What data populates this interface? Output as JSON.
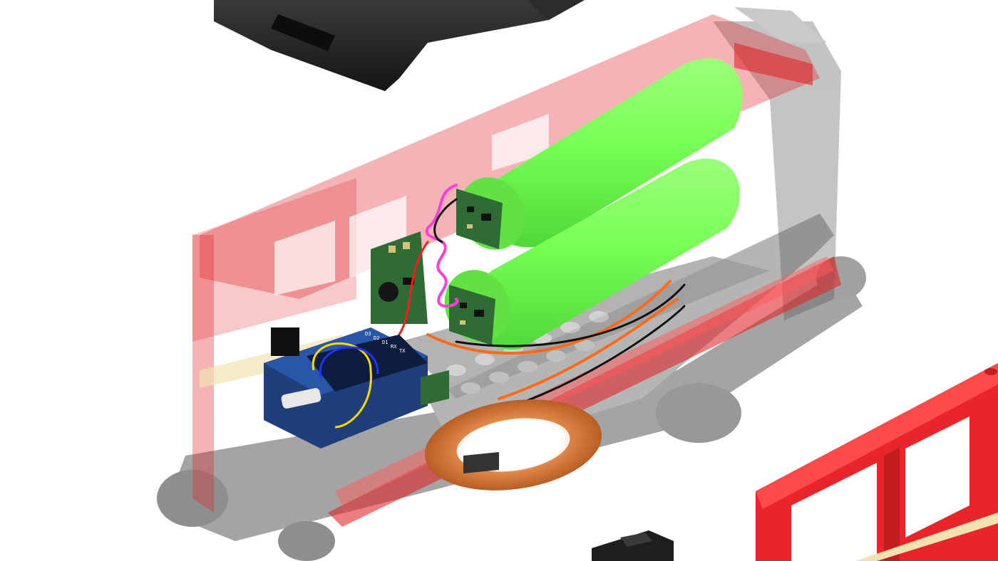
{
  "scene": {
    "subject": "exploded-render-of-brick-train-wagon-with-electronics",
    "background_color": "#ffffff",
    "colors": {
      "translucent_red": "#e0282a",
      "translucent_grey": "#6e6e6e",
      "battery_green": "#7dff5c",
      "pcb_green": "#2f6b35",
      "module_blue": "#1e3f7a",
      "coil_copper": "#d2793a",
      "roof_black": "#1e1e1e",
      "solid_red": "#e8262a",
      "wire_magenta": "#ff3fd8",
      "wire_orange": "#ff6a1a",
      "wire_yellow": "#ffd800",
      "wire_blue": "#2233ff",
      "wire_red": "#ff1a1a",
      "wire_black": "#111111"
    }
  },
  "components": {
    "roof_part": {
      "icon": "roof-brick-icon"
    },
    "wagon_body": {
      "icon": "transparent-wagon-icon"
    },
    "battery_cells": {
      "count": 2,
      "icon": "cylinder-battery-icon"
    },
    "protection_boards": {
      "count": 2,
      "icon": "pcb-icon"
    },
    "boost_converter": {
      "icon": "pcb-icon"
    },
    "microcontroller_module": {
      "icon": "microcontroller-icon",
      "pin_labels": [
        "TX",
        "RX",
        "D1",
        "D2",
        "D3",
        "D4",
        "G",
        "5V"
      ]
    },
    "wireless_charging_coil": {
      "icon": "copper-coil-icon"
    },
    "side_panel": {
      "icon": "red-window-panel-icon"
    },
    "bottom_part": {
      "icon": "black-brick-icon"
    }
  }
}
